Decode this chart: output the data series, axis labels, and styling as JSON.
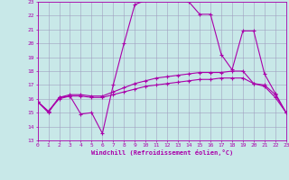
{
  "xlabel": "Windchill (Refroidissement éolien,°C)",
  "xlim": [
    0,
    23
  ],
  "ylim": [
    13,
    23
  ],
  "yticks": [
    13,
    14,
    15,
    16,
    17,
    18,
    19,
    20,
    21,
    22,
    23
  ],
  "xticks": [
    0,
    1,
    2,
    3,
    4,
    5,
    6,
    7,
    8,
    9,
    10,
    11,
    12,
    13,
    14,
    15,
    16,
    17,
    18,
    19,
    20,
    21,
    22,
    23
  ],
  "bg_color": "#c8e8e8",
  "grid_color": "#a0a0c0",
  "line_color": "#aa00aa",
  "line1_x": [
    0,
    1,
    2,
    3,
    4,
    5,
    6,
    7,
    8,
    9,
    10,
    11,
    12,
    13,
    14,
    15,
    16,
    17,
    18,
    19,
    20,
    21,
    22,
    23
  ],
  "line1_y": [
    15.8,
    15.0,
    16.1,
    16.2,
    14.9,
    15.0,
    13.5,
    17.0,
    20.0,
    22.8,
    23.1,
    23.2,
    23.2,
    23.1,
    23.0,
    22.1,
    22.1,
    19.2,
    18.1,
    20.9,
    20.9,
    17.8,
    16.4,
    15.0
  ],
  "line2_x": [
    0,
    1,
    2,
    3,
    4,
    5,
    6,
    7,
    8,
    9,
    10,
    11,
    12,
    13,
    14,
    15,
    16,
    17,
    18,
    19,
    20,
    21,
    22,
    23
  ],
  "line2_y": [
    15.8,
    15.1,
    16.1,
    16.3,
    16.3,
    16.2,
    16.2,
    16.5,
    16.8,
    17.1,
    17.3,
    17.5,
    17.6,
    17.7,
    17.8,
    17.9,
    17.9,
    17.9,
    18.0,
    18.0,
    17.1,
    17.0,
    16.3,
    15.0
  ],
  "line3_x": [
    0,
    1,
    2,
    3,
    4,
    5,
    6,
    7,
    8,
    9,
    10,
    11,
    12,
    13,
    14,
    15,
    16,
    17,
    18,
    19,
    20,
    21,
    22,
    23
  ],
  "line3_y": [
    15.8,
    15.1,
    16.0,
    16.2,
    16.2,
    16.1,
    16.1,
    16.3,
    16.5,
    16.7,
    16.9,
    17.0,
    17.1,
    17.2,
    17.3,
    17.4,
    17.4,
    17.5,
    17.5,
    17.5,
    17.1,
    16.9,
    16.1,
    15.0
  ]
}
